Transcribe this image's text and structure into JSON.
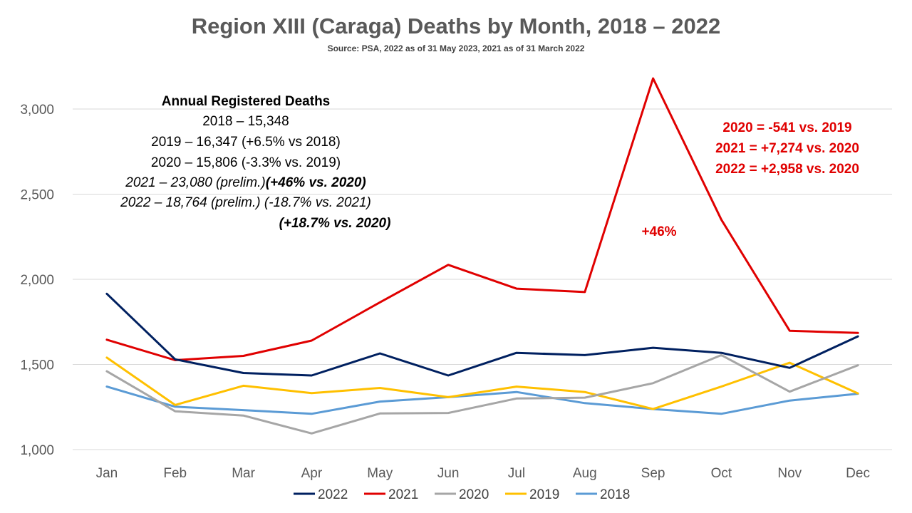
{
  "chart_data": {
    "type": "line",
    "title": "Region XIII (Caraga) Deaths by Month, 2018 – 2022",
    "subtitle": "Source: PSA, 2022 as of 31 May 2023, 2021 as of 31 March 2022",
    "categories": [
      "Jan",
      "Feb",
      "Mar",
      "Apr",
      "May",
      "Jun",
      "Jul",
      "Aug",
      "Sep",
      "Oct",
      "Nov",
      "Dec"
    ],
    "ylim": [
      1000,
      3200
    ],
    "yticks": [
      {
        "value": 1000,
        "label": "1,000"
      },
      {
        "value": 1500,
        "label": "1,500"
      },
      {
        "value": 2000,
        "label": "2,000"
      },
      {
        "value": 2500,
        "label": "2,500"
      },
      {
        "value": 3000,
        "label": "3,000"
      }
    ],
    "grid": true,
    "legend_position": "bottom",
    "series": [
      {
        "name": "2022",
        "color": "#002060",
        "values": [
          1915,
          1530,
          1450,
          1435,
          1565,
          1435,
          1568,
          1555,
          1598,
          1568,
          1480,
          1665
        ]
      },
      {
        "name": "2021",
        "color": "#e00000",
        "values": [
          1645,
          1525,
          1550,
          1640,
          1865,
          2085,
          1945,
          1925,
          3180,
          2350,
          1698,
          1685
        ]
      },
      {
        "name": "2020",
        "color": "#a6a6a6",
        "values": [
          1460,
          1225,
          1200,
          1095,
          1212,
          1215,
          1300,
          1305,
          1390,
          1555,
          1340,
          1495
        ]
      },
      {
        "name": "2019",
        "color": "#ffc000",
        "values": [
          1540,
          1262,
          1375,
          1332,
          1362,
          1308,
          1370,
          1338,
          1238,
          1370,
          1510,
          1330
        ]
      },
      {
        "name": "2018",
        "color": "#5b9bd5",
        "values": [
          1370,
          1252,
          1232,
          1210,
          1282,
          1308,
          1338,
          1273,
          1238,
          1210,
          1288,
          1328
        ]
      }
    ],
    "annotations": {
      "annual_heading": "Annual Registered Deaths",
      "annual_lines": [
        {
          "text": "2018 – 15,348"
        },
        {
          "text": "2019 – 16,347 (+6.5% vs 2018)"
        },
        {
          "text": "2020 – 15,806 (-3.3% vs. 2019)"
        },
        {
          "text": "2021 – 23,080 (prelim.)",
          "emphasis": "(+46% vs. 2020)"
        },
        {
          "text": "2022 – 18,764 (prelim.) (-18.7% vs. 2021)"
        },
        {
          "text": "",
          "emphasis": "(+18.7% vs. 2020)"
        }
      ],
      "red_lines": [
        "2020 = -541 vs. 2019",
        "2021 = +7,274 vs. 2020",
        "2022 = +2,958 vs. 2020"
      ],
      "peak_label": "+46%"
    }
  }
}
